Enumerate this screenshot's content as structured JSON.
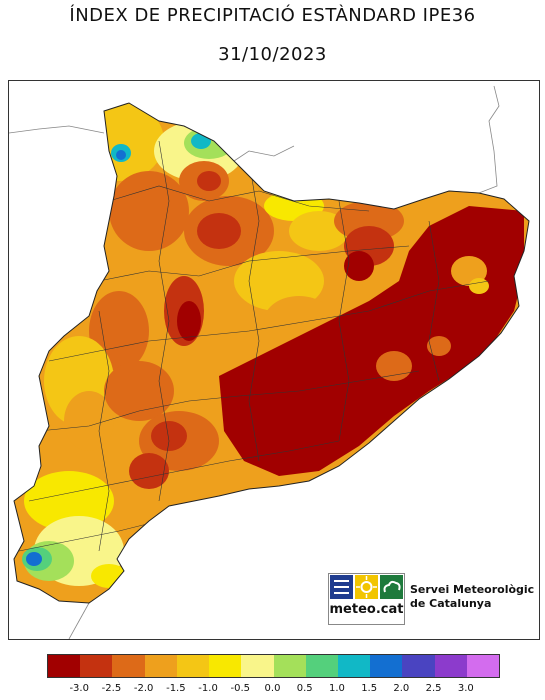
{
  "header": {
    "title": "ÍNDEX DE PRECIPITACIÓ ESTÀNDARD IPE36",
    "date": "31/10/2023"
  },
  "logo": {
    "name": "meteo.cat",
    "organization_line1": "Servei Meteorològic",
    "organization_line2": "de Catalunya",
    "colors": {
      "blue": "#1f3c8f",
      "yellow": "#f2c500",
      "green": "#1e7a3c"
    }
  },
  "legend": {
    "colors": [
      "#a10000",
      "#c43210",
      "#dd6a18",
      "#eea01d",
      "#f4c615",
      "#f8e800",
      "#f9f58a",
      "#a4e05a",
      "#54d07c",
      "#11b8c6",
      "#136fd1",
      "#4a44c1",
      "#8c3bcc",
      "#d36cee"
    ],
    "ticks": [
      "-3.0",
      "-2.5",
      "-2.0",
      "-1.5",
      "-1.0",
      "-0.5",
      "0.0",
      "0.5",
      "1.0",
      "1.5",
      "2.0",
      "2.5",
      "3.0"
    ]
  }
}
